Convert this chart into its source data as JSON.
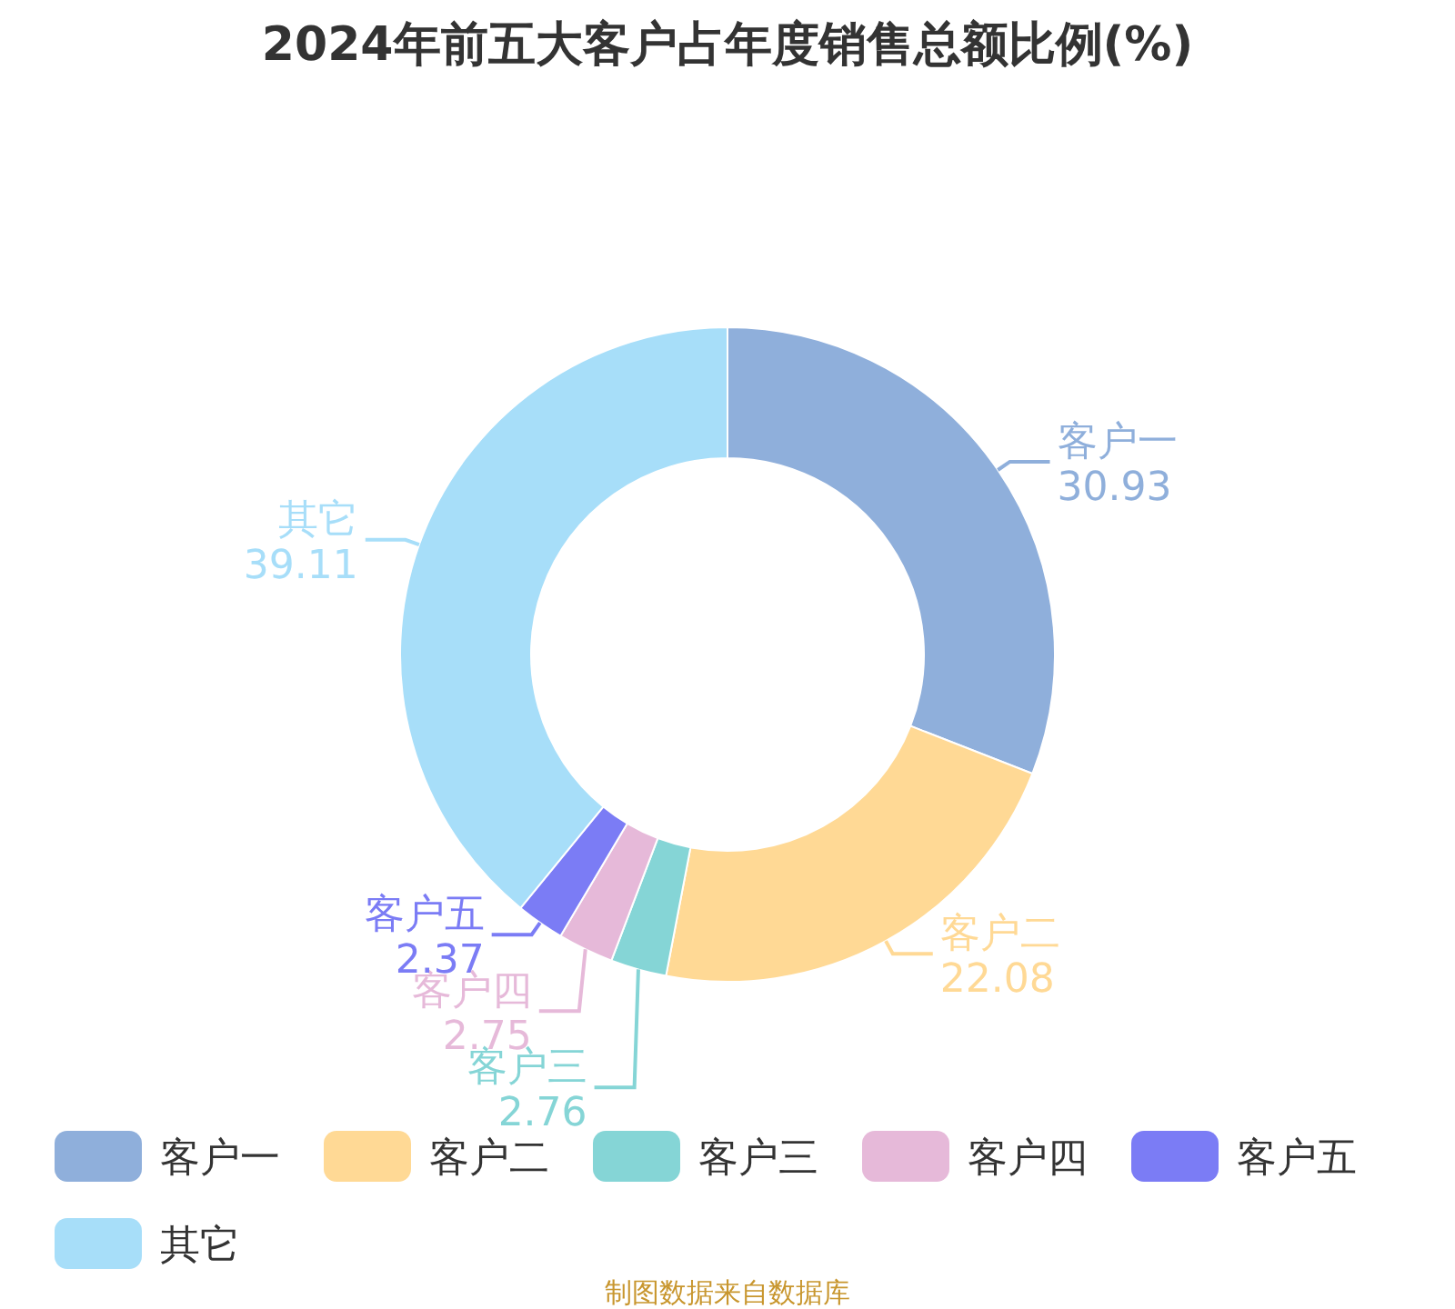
{
  "chart_data": {
    "type": "donut",
    "title": "2024年前五大客户占年度销售总额比例(%)",
    "categories": [
      "客户一",
      "客户二",
      "客户三",
      "客户四",
      "客户五",
      "其它"
    ],
    "values": [
      30.93,
      22.08,
      2.76,
      2.75,
      2.37,
      39.11
    ],
    "colors": [
      "#8fafdb",
      "#ffd995",
      "#85d5d6",
      "#e6b9d9",
      "#7b7cf5",
      "#a7def9"
    ],
    "data_labels": true,
    "legend": "bottom",
    "annotations": [
      "制图数据来自数据库"
    ]
  }
}
